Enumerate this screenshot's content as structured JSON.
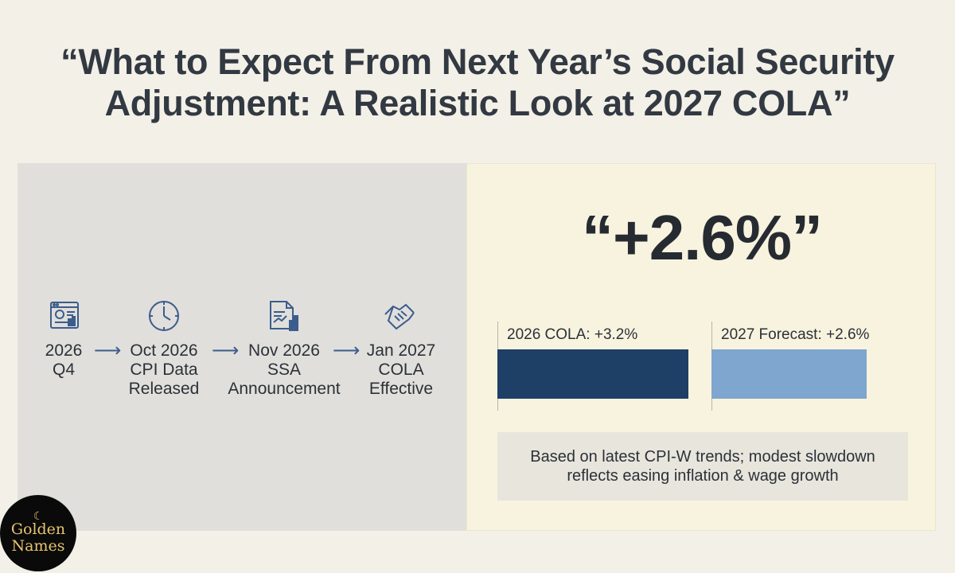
{
  "headline": {
    "line1": "“What to Expect From Next Year’s Social Security",
    "line2": "Adjustment: A Realistic Look at 2027 COLA”"
  },
  "timeline": [
    {
      "icon": "data-dashboard-icon",
      "line1": "2026",
      "line2": "Q4",
      "line3": ""
    },
    {
      "icon": "clock-icon",
      "line1": "Oct 2026",
      "line2": "CPI Data",
      "line3": "Released"
    },
    {
      "icon": "document-chart-icon",
      "line1": "Nov 2026",
      "line2": "SSA",
      "line3": "Announcement"
    },
    {
      "icon": "handshake-icon",
      "line1": "Jan 2027",
      "line2": "COLA",
      "line3": "Effective"
    }
  ],
  "arrow_glyph": "⟶",
  "forecast": {
    "big_value": "“+2.6%”",
    "bars": [
      {
        "label": "2026 COLA: +3.2%",
        "value": 3.2,
        "color": "#1e3f66"
      },
      {
        "label": "2027 Forecast: +2.6%",
        "value": 2.6,
        "color": "#7ea6cf"
      }
    ],
    "note": "Based on latest CPI-W trends; modest slowdown reflects easing inflation & wage growth"
  },
  "logo": {
    "line1": "Golden",
    "line2": "Names",
    "symbol": "☾"
  },
  "colors": {
    "icon_stroke": "#3c5d8c",
    "logo_gold": "#e7c46e"
  }
}
